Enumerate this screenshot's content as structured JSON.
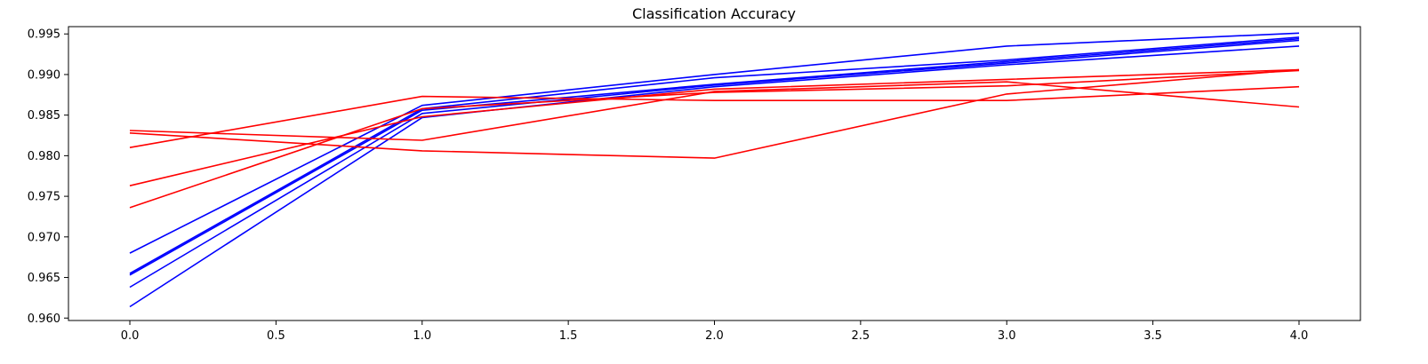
{
  "chart_data": {
    "type": "line",
    "title": "Classification Accuracy",
    "xlabel": "",
    "ylabel": "",
    "xlim": [
      -0.21,
      4.21
    ],
    "ylim": [
      0.9597,
      0.9959
    ],
    "xticks": [
      0.0,
      0.5,
      1.0,
      1.5,
      2.0,
      2.5,
      3.0,
      3.5,
      4.0
    ],
    "xtick_labels": [
      "0.0",
      "0.5",
      "1.0",
      "1.5",
      "2.0",
      "2.5",
      "3.0",
      "3.5",
      "4.0"
    ],
    "yticks": [
      0.96,
      0.965,
      0.97,
      0.975,
      0.98,
      0.985,
      0.99,
      0.995
    ],
    "ytick_labels": [
      "0.960",
      "0.965",
      "0.970",
      "0.975",
      "0.980",
      "0.985",
      "0.990",
      "0.995"
    ],
    "grid": false,
    "legend": "none",
    "x": [
      0,
      1,
      2,
      3,
      4
    ],
    "series": [
      {
        "color": "#0000ff",
        "values": [
          0.968,
          0.9862,
          0.99,
          0.9935,
          0.9951
        ]
      },
      {
        "color": "#0000ff",
        "values": [
          0.9655,
          0.9858,
          0.9896,
          0.9918,
          0.9946
        ]
      },
      {
        "color": "#0000ff",
        "values": [
          0.9653,
          0.9856,
          0.9888,
          0.9916,
          0.9944
        ]
      },
      {
        "color": "#0000ff",
        "values": [
          0.9638,
          0.9852,
          0.9887,
          0.9914,
          0.9942
        ]
      },
      {
        "color": "#0000ff",
        "values": [
          0.9614,
          0.9847,
          0.9885,
          0.9912,
          0.9935
        ]
      },
      {
        "color": "#ff0000",
        "values": [
          0.981,
          0.9873,
          0.9868,
          0.9868,
          0.9885
        ]
      },
      {
        "color": "#ff0000",
        "values": [
          0.9763,
          0.9848,
          0.9882,
          0.9894,
          0.9906
        ]
      },
      {
        "color": "#ff0000",
        "values": [
          0.9736,
          0.9858,
          0.9878,
          0.9886,
          0.9905
        ]
      },
      {
        "color": "#ff0000",
        "values": [
          0.9831,
          0.9819,
          0.9879,
          0.9891,
          0.986
        ]
      },
      {
        "color": "#ff0000",
        "values": [
          0.9828,
          0.9806,
          0.9797,
          0.9876,
          0.9906
        ]
      }
    ]
  }
}
